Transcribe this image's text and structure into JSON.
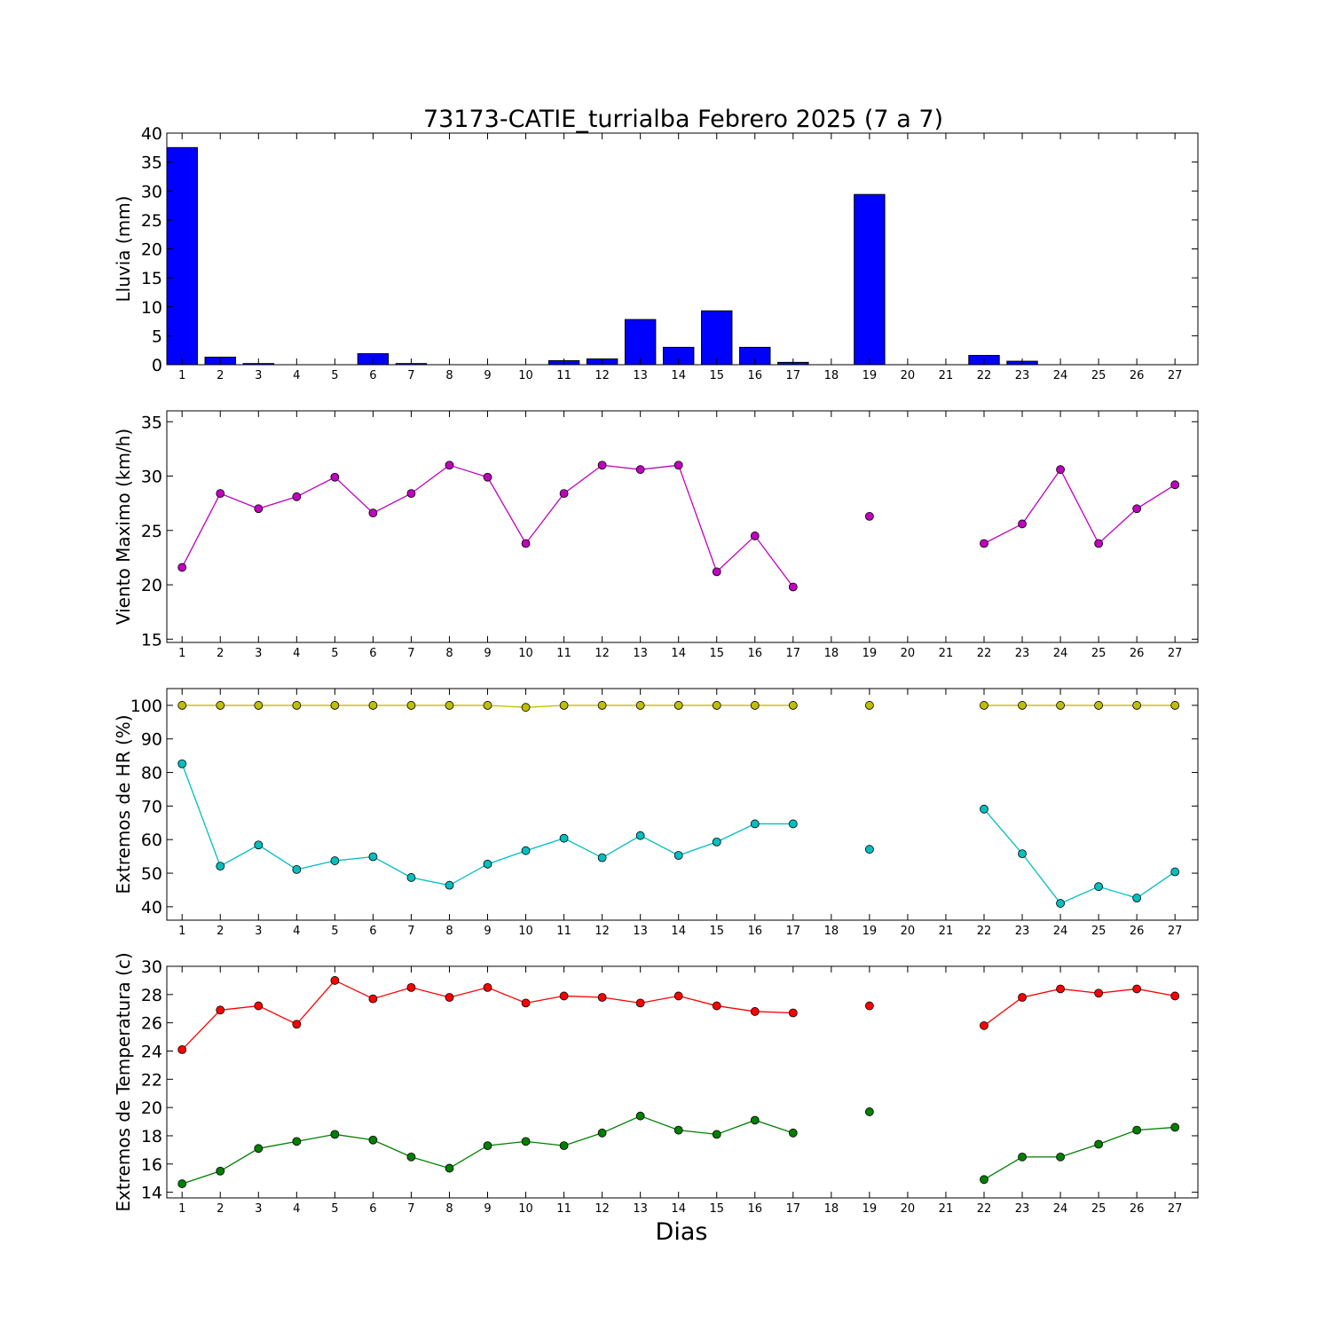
{
  "figure_title": "73173-CATIE_turrialba Febrero 2025  (7 a 7)",
  "xlabel": "Dias",
  "chart_data": [
    {
      "type": "bar",
      "ylabel": "Lluvia (mm)",
      "ylim": [
        0,
        40
      ],
      "yticks": [
        0,
        5,
        10,
        15,
        20,
        25,
        30,
        35,
        40
      ],
      "x": [
        1,
        2,
        3,
        4,
        5,
        6,
        7,
        8,
        9,
        10,
        11,
        12,
        13,
        14,
        15,
        16,
        17,
        18,
        19,
        20,
        21,
        22,
        23,
        24,
        25,
        26,
        27
      ],
      "series": [
        {
          "color": "#0000ff",
          "values": [
            37.5,
            1.3,
            0.2,
            0,
            0,
            1.9,
            0.2,
            0,
            0,
            0,
            0.7,
            1.0,
            7.8,
            3.0,
            9.3,
            3.0,
            0.4,
            null,
            29.4,
            0,
            0,
            1.6,
            0.6,
            0,
            0,
            0,
            0
          ]
        }
      ]
    },
    {
      "type": "line",
      "ylabel": "Viento Maximo (km/h)",
      "ylim": [
        14.7,
        36
      ],
      "yticks": [
        15,
        20,
        25,
        30,
        35
      ],
      "x": [
        1,
        2,
        3,
        4,
        5,
        6,
        7,
        8,
        9,
        10,
        11,
        12,
        13,
        14,
        15,
        16,
        17,
        18,
        19,
        20,
        21,
        22,
        23,
        24,
        25,
        26,
        27
      ],
      "series": [
        {
          "color": "#bf00bf",
          "values": [
            21.6,
            28.4,
            27.0,
            28.1,
            29.9,
            26.6,
            28.4,
            31.0,
            29.9,
            23.8,
            28.4,
            31.0,
            30.6,
            31.0,
            21.2,
            24.5,
            19.8,
            null,
            26.3,
            null,
            null,
            23.8,
            25.6,
            30.6,
            23.8,
            27.0,
            29.2
          ]
        }
      ]
    },
    {
      "type": "line",
      "ylabel": "Extremos de HR (%)",
      "ylim": [
        36,
        105
      ],
      "yticks": [
        40,
        50,
        60,
        70,
        80,
        90,
        100
      ],
      "x": [
        1,
        2,
        3,
        4,
        5,
        6,
        7,
        8,
        9,
        10,
        11,
        12,
        13,
        14,
        15,
        16,
        17,
        18,
        19,
        20,
        21,
        22,
        23,
        24,
        25,
        26,
        27
      ],
      "series": [
        {
          "color": "#bfbf00",
          "values": [
            100,
            100,
            100,
            100,
            100,
            100,
            100,
            100,
            100,
            99.4,
            100,
            100,
            100,
            100,
            100,
            100,
            100,
            null,
            100,
            null,
            null,
            100,
            100,
            100,
            100,
            100,
            100
          ]
        },
        {
          "color": "#00bfbf",
          "values": [
            82.6,
            52.1,
            58.4,
            51.1,
            53.7,
            54.9,
            48.7,
            46.4,
            52.7,
            56.7,
            60.4,
            54.6,
            61.2,
            55.3,
            59.3,
            64.7,
            64.7,
            null,
            57.1,
            null,
            null,
            69.1,
            55.8,
            41.0,
            46.0,
            42.6,
            50.4
          ]
        }
      ]
    },
    {
      "type": "line",
      "ylabel": "Extremos de Temperatura (c)",
      "ylim": [
        13.6,
        30
      ],
      "yticks": [
        14,
        16,
        18,
        20,
        22,
        24,
        26,
        28,
        30
      ],
      "x": [
        1,
        2,
        3,
        4,
        5,
        6,
        7,
        8,
        9,
        10,
        11,
        12,
        13,
        14,
        15,
        16,
        17,
        18,
        19,
        20,
        21,
        22,
        23,
        24,
        25,
        26,
        27
      ],
      "series": [
        {
          "color": "#ff0000",
          "values": [
            24.1,
            26.9,
            27.2,
            25.9,
            29.0,
            27.7,
            28.5,
            27.8,
            28.5,
            27.4,
            27.9,
            27.8,
            27.4,
            27.9,
            27.2,
            26.8,
            26.7,
            null,
            27.2,
            null,
            null,
            25.8,
            27.8,
            28.4,
            28.1,
            28.4,
            27.9
          ]
        },
        {
          "color": "#007f00",
          "values": [
            14.6,
            15.5,
            17.1,
            17.6,
            18.1,
            17.7,
            16.5,
            15.7,
            17.3,
            17.6,
            17.3,
            18.2,
            19.4,
            18.4,
            18.1,
            19.1,
            18.2,
            null,
            19.7,
            null,
            null,
            14.9,
            16.5,
            16.5,
            17.4,
            18.4,
            18.6
          ]
        }
      ]
    }
  ]
}
